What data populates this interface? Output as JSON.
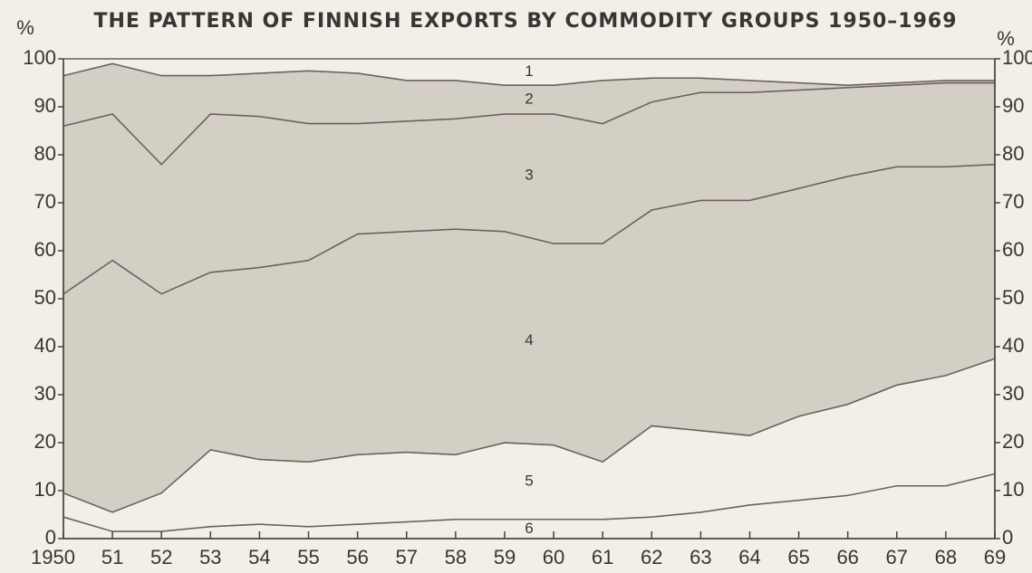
{
  "chart_data": {
    "type": "stacked_area",
    "title": "THE PATTERN OF FINNISH EXPORTS BY COMMODITY GROUPS 1950–1969",
    "y_label": "%",
    "y2_label": "%",
    "categories": [
      "1950",
      "51",
      "52",
      "53",
      "54",
      "55",
      "56",
      "57",
      "58",
      "59",
      "60",
      "61",
      "62",
      "63",
      "64",
      "65",
      "66",
      "67",
      "68",
      "69"
    ],
    "series": [
      {
        "name": "6",
        "color": "#f1efe6",
        "values": [
          4.5,
          1.5,
          1.5,
          2.5,
          3,
          2.5,
          3,
          3.5,
          4,
          4,
          4,
          4,
          4.5,
          5.5,
          7,
          8,
          9,
          11,
          11,
          13.5
        ]
      },
      {
        "name": "5",
        "color": "#f1efe6",
        "values": [
          5,
          4,
          8,
          16,
          13.5,
          13.5,
          14.5,
          14.5,
          13.5,
          16,
          15.5,
          12,
          19,
          17,
          14.5,
          17.5,
          19,
          21,
          23,
          24
        ]
      },
      {
        "name": "4",
        "color": "#d3cfc4",
        "values": [
          41.5,
          52.5,
          41.5,
          37,
          40,
          42,
          46,
          46,
          47,
          44,
          42,
          45.5,
          45,
          48,
          49,
          47.5,
          47.5,
          45.5,
          43.5,
          40.5
        ]
      },
      {
        "name": "3",
        "color": "#d3cfc4",
        "values": [
          35,
          30.5,
          27,
          33,
          31.5,
          28.5,
          23,
          23,
          23,
          24.5,
          27,
          25,
          22.5,
          22.5,
          22.5,
          20.5,
          18.5,
          17,
          17.5,
          17
        ]
      },
      {
        "name": "2",
        "color": "#d3cfc4",
        "values": [
          10.5,
          10.5,
          18.5,
          8,
          9,
          11,
          10.5,
          8.5,
          8,
          6,
          6,
          9,
          5,
          3,
          2.5,
          1.5,
          0.5,
          0.5,
          0.5,
          0.5
        ]
      },
      {
        "name": "1",
        "color": "#f1efe6",
        "values": [
          3.5,
          1,
          3.5,
          3.5,
          3,
          2.5,
          3,
          4.5,
          4.5,
          5.5,
          5.5,
          4.5,
          4,
          4,
          4.5,
          5,
          5.5,
          5,
          4.5,
          4.5
        ]
      }
    ],
    "ylim": [
      0,
      100
    ],
    "yticks": [
      0,
      10,
      20,
      30,
      40,
      50,
      60,
      70,
      80,
      90,
      100
    ]
  }
}
